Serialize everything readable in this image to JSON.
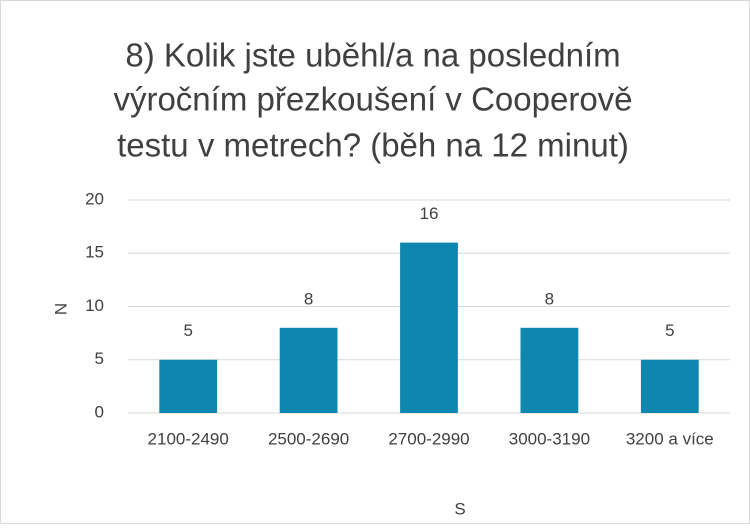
{
  "chart_data": {
    "type": "bar",
    "title_lines": [
      "8) Kolik jste uběhl/a na posledním",
      "výročním přezkoušení v Cooperově",
      "testu v metrech? (běh na 12 minut)"
    ],
    "x_label": "S",
    "y_label": "N",
    "categories": [
      "2100-2490",
      "2500-2690",
      "2700-2990",
      "3000-3190",
      "3200 a více"
    ],
    "values": [
      5,
      8,
      16,
      8,
      5
    ],
    "color": "#0e86ad",
    "ylim": [
      0,
      20
    ],
    "yticks": [
      0,
      5,
      10,
      15,
      20
    ],
    "grid": true
  }
}
